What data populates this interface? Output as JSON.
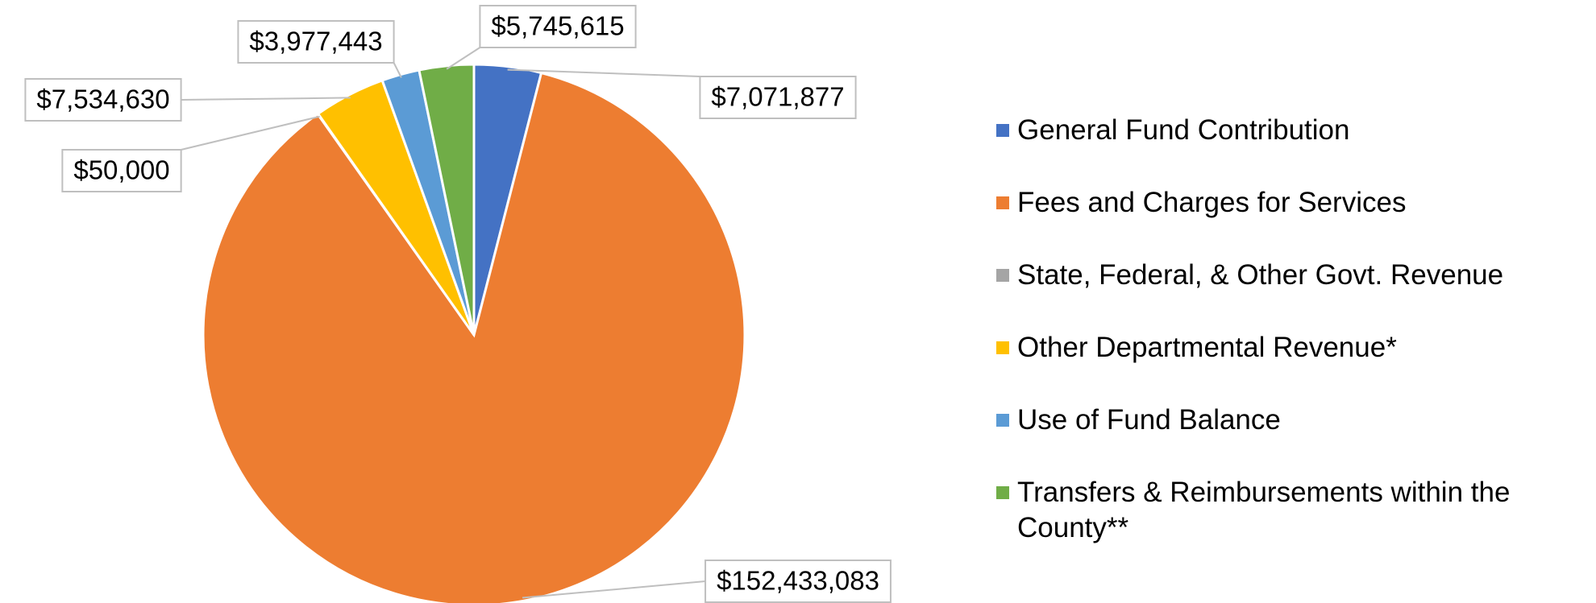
{
  "chart_data": {
    "type": "pie",
    "categories": [
      "General Fund Contribution",
      "Fees and Charges for Services",
      "State, Federal, & Other Govt. Revenue",
      "Other Departmental Revenue*",
      "Use of Fund Balance",
      "Transfers & Reimbursements within the County**"
    ],
    "values": [
      7071877,
      152433083,
      50000,
      7534630,
      3977443,
      5745615
    ],
    "value_labels": [
      "$7,071,877",
      "$152,433,083",
      "$50,000",
      "$7,534,630",
      "$3,977,443",
      "$5,745,615"
    ],
    "colors": [
      "#4472c4",
      "#ed7d31",
      "#a5a5a5",
      "#ffc000",
      "#5b9bd5",
      "#70ad47"
    ],
    "legend": "right"
  }
}
